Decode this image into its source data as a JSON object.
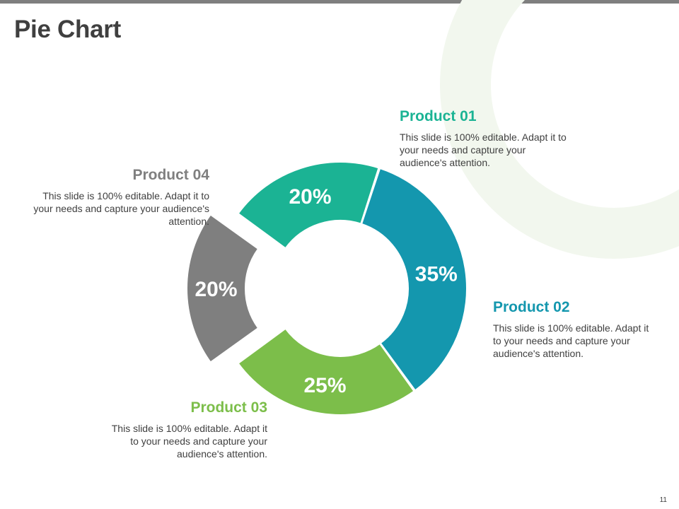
{
  "slide": {
    "title": "Pie Chart",
    "page_number": "11"
  },
  "colors": {
    "product_01": "#1bb394",
    "product_02": "#1497ae",
    "product_03": "#7cbe4a",
    "product_04": "#7f7f7f",
    "decoration": "#f2f7ee"
  },
  "products": [
    {
      "name": "Product 01",
      "desc": "This slide is 100% editable. Adapt it to your needs and capture your audience's attention."
    },
    {
      "name": "Product 02",
      "desc": "This slide is 100% editable. Adapt it to your needs and capture your audience's attention."
    },
    {
      "name": "Product 03",
      "desc": "This slide is 100% editable. Adapt it to your needs and capture your audience's attention."
    },
    {
      "name": "Product 04",
      "desc": "This slide is 100% editable. Adapt it to your needs and capture your audience's attention."
    }
  ],
  "chart_data": {
    "type": "pie",
    "title": "",
    "labels": [
      "Product 01",
      "Product 02",
      "Product 03",
      "Product 04"
    ],
    "values": [
      20,
      35,
      25,
      20
    ],
    "data_labels": [
      "20%",
      "35%",
      "25%",
      "20%"
    ],
    "exploded": [
      "Product 04"
    ]
  }
}
